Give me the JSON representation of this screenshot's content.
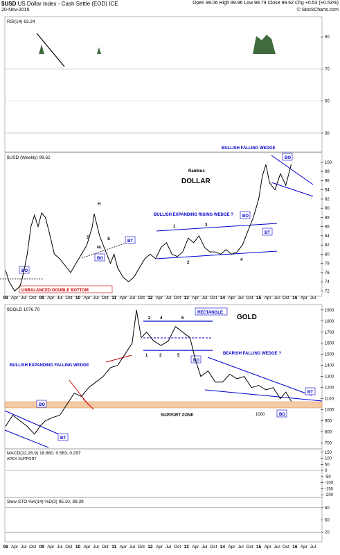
{
  "header": {
    "symbol": "$USD",
    "name": "US Dollar Index - Cash Settle (EOD)",
    "exchange": "ICE",
    "date": "20-Nov-2015",
    "quote_line": "Open 99.06 High 99.96 Low 98.79 Close 99.62 Chg +0.53 (+0.53%)",
    "copyright": "© StockCharts.com"
  },
  "colors": {
    "price": "#000000",
    "trend": "#0000cc",
    "red": "#cc0000",
    "macd_signal": "#cc0000",
    "histogram": "#3a7ea8",
    "overbought": "#3f6b3f",
    "support": "#f5c9a3"
  },
  "x_axis_labels": [
    "08",
    "Apr",
    "Jul",
    "Oct",
    "09",
    "Apr",
    "Jul",
    "Oct",
    "10",
    "Apr",
    "Jul",
    "Oct",
    "11",
    "Apr",
    "Jul",
    "Oct",
    "12",
    "Apr",
    "Jul",
    "Oct",
    "13",
    "Apr",
    "Jul",
    "Oct",
    "14",
    "Apr",
    "Jul",
    "Oct",
    "15",
    "Apr",
    "Jul",
    "Oct",
    "16",
    "Apr",
    "Jul"
  ],
  "chart_data": [
    {
      "type": "line",
      "panel": "rsi",
      "legend": "RSI(14) 63.24",
      "y_ticks": [
        90,
        70,
        50,
        30
      ],
      "ylim": [
        20,
        100
      ],
      "reference_lines": [
        70,
        50,
        30
      ]
    },
    {
      "type": "line",
      "panel": "usd",
      "legend": "$USD (Weekly) 99.62",
      "title": "DOLLAR",
      "author": "Rambus",
      "y_ticks": [
        100,
        98,
        96,
        94,
        92,
        90,
        88,
        86,
        84,
        82,
        80,
        78,
        76,
        74,
        72
      ],
      "ylim": [
        71,
        101.5
      ],
      "series": [
        {
          "x": [
            2008.0,
            2008.1,
            2008.25,
            2008.4,
            2008.5,
            2008.6,
            2008.7,
            2008.8,
            2008.9,
            2009.0,
            2009.1,
            2009.2,
            2009.35,
            2009.5,
            2009.65,
            2009.8,
            2009.95,
            2010.1,
            2010.25,
            2010.4,
            2010.45,
            2010.6,
            2010.75,
            2010.9,
            2011.0,
            2011.1,
            2011.25,
            2011.4,
            2011.55,
            2011.7,
            2011.85,
            2012.0,
            2012.15,
            2012.3,
            2012.45,
            2012.6,
            2012.75,
            2012.9,
            2013.05,
            2013.2,
            2013.35,
            2013.5,
            2013.65,
            2013.8,
            2013.95,
            2014.1,
            2014.25,
            2014.4,
            2014.55,
            2014.7,
            2014.85,
            2015.0,
            2015.1,
            2015.2,
            2015.3,
            2015.45,
            2015.6,
            2015.75,
            2015.9
          ],
          "y": [
            76.5,
            74.0,
            72.0,
            73.0,
            76.0,
            80.0,
            86.0,
            88.5,
            86.0,
            89.0,
            88.0,
            85.0,
            80.0,
            79.0,
            77.5,
            76.0,
            78.0,
            80.0,
            82.0,
            86.0,
            88.8,
            84.0,
            81.0,
            78.0,
            80.0,
            77.0,
            75.0,
            74.0,
            75.0,
            77.0,
            79.0,
            80.0,
            79.0,
            81.5,
            82.5,
            80.0,
            79.5,
            80.5,
            83.5,
            82.5,
            84.0,
            81.5,
            80.5,
            80.5,
            80.0,
            81.0,
            80.0,
            80.5,
            82.0,
            85.0,
            88.0,
            92.0,
            97.0,
            99.5,
            95.5,
            94.0,
            97.5,
            95.0,
            99.6
          ]
        }
      ],
      "annotations": [
        "BULLISH FALLING WEDGE",
        "BO",
        "BULLISH EXPANDING RISING WEDGE ?",
        "BO",
        "BT",
        "UNBALANCED DOUBLE BOTTOM",
        "BO",
        "BT",
        "BO",
        "H",
        "S",
        "S",
        "NL",
        "1",
        "2",
        "3",
        "4"
      ]
    },
    {
      "type": "line",
      "panel": "gold",
      "legend": "$GOLD 1076.70",
      "title": "GOLD",
      "y_ticks": [
        1900,
        1800,
        1700,
        1600,
        1500,
        1400,
        1300,
        1200,
        1100,
        1000,
        900,
        800,
        700
      ],
      "ylim": [
        660,
        1930
      ],
      "support_zone": [
        1000,
        1060
      ],
      "series": [
        {
          "x": [
            2008.0,
            2008.2,
            2008.4,
            2008.6,
            2008.8,
            2008.95,
            2009.1,
            2009.3,
            2009.5,
            2009.7,
            2009.9,
            2010.1,
            2010.3,
            2010.5,
            2010.7,
            2010.9,
            2011.1,
            2011.3,
            2011.5,
            2011.62,
            2011.75,
            2011.9,
            2012.1,
            2012.3,
            2012.5,
            2012.7,
            2012.9,
            2013.1,
            2013.25,
            2013.4,
            2013.6,
            2013.8,
            2014.0,
            2014.2,
            2014.4,
            2014.6,
            2014.8,
            2015.0,
            2015.2,
            2015.4,
            2015.6,
            2015.75,
            2015.9
          ],
          "y": [
            850,
            950,
            900,
            850,
            780,
            850,
            900,
            930,
            950,
            1050,
            1150,
            1120,
            1200,
            1250,
            1300,
            1380,
            1400,
            1500,
            1600,
            1900,
            1650,
            1700,
            1620,
            1580,
            1620,
            1750,
            1700,
            1650,
            1450,
            1300,
            1350,
            1250,
            1250,
            1320,
            1280,
            1300,
            1200,
            1220,
            1180,
            1200,
            1100,
            1160,
            1076.7
          ]
        }
      ],
      "annotations": [
        "RECTANGLE",
        "BO",
        "BEARISH FALLING WEDGE ?",
        "BT",
        "BO",
        "SUPPORT ZONE",
        "BULLISH EXPANDING FALLING WEDGE",
        "BO",
        "BT",
        "1000",
        "1",
        "2",
        "3",
        "4",
        "5",
        "6"
      ]
    },
    {
      "type": "line",
      "panel": "macd",
      "legend": "MACD(12,26,9) 18.880, 0.583, 0.297",
      "sub_legend": "APEX SUPPORT",
      "y_ticks": [
        150,
        100,
        50,
        0,
        -50,
        -100,
        -150,
        -200
      ],
      "ylim": [
        -210,
        160
      ]
    },
    {
      "type": "line",
      "panel": "sto",
      "legend": "Slow STO %K(14) %D(3) 95.10, 89.39",
      "y_ticks": [
        80,
        50,
        20
      ],
      "ylim": [
        0,
        100
      ],
      "reference_lines": [
        80,
        20
      ]
    }
  ]
}
